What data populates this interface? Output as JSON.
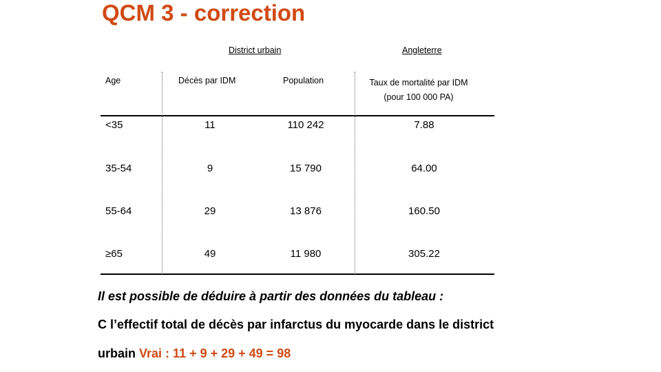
{
  "slide": {
    "title": "QCM 3 - correction",
    "accent_color": "#d04a13"
  },
  "table": {
    "group_headers": {
      "district": "District urbain",
      "england": "Angleterre"
    },
    "columns": {
      "age": "Age",
      "deces": "Décès par IDM",
      "population": "Population",
      "taux_line1": "Taux de mortalité par IDM",
      "taux_line2": "(pour 100 000 PA)"
    },
    "rows": [
      {
        "age": "<35",
        "deces": "11",
        "population": "110 242",
        "taux": "7.88"
      },
      {
        "age": "35-54",
        "deces": "9",
        "population": "15 790",
        "taux": "64.00"
      },
      {
        "age": "55-64",
        "deces": "29",
        "population": "13 876",
        "taux": "160.50"
      },
      {
        "age": "≥65",
        "deces": "49",
        "population": "11 980",
        "taux": "305.22"
      }
    ]
  },
  "text": {
    "question": "Il est possible de déduire à partir des données du tableau :",
    "answer_line1": "C l’effectif total de décès par infarctus du myocarde dans le district",
    "answer_line2_start": "urbain",
    "answer_verdict": "Vrai : 11 + 9 + 29 + 49 = 98"
  }
}
